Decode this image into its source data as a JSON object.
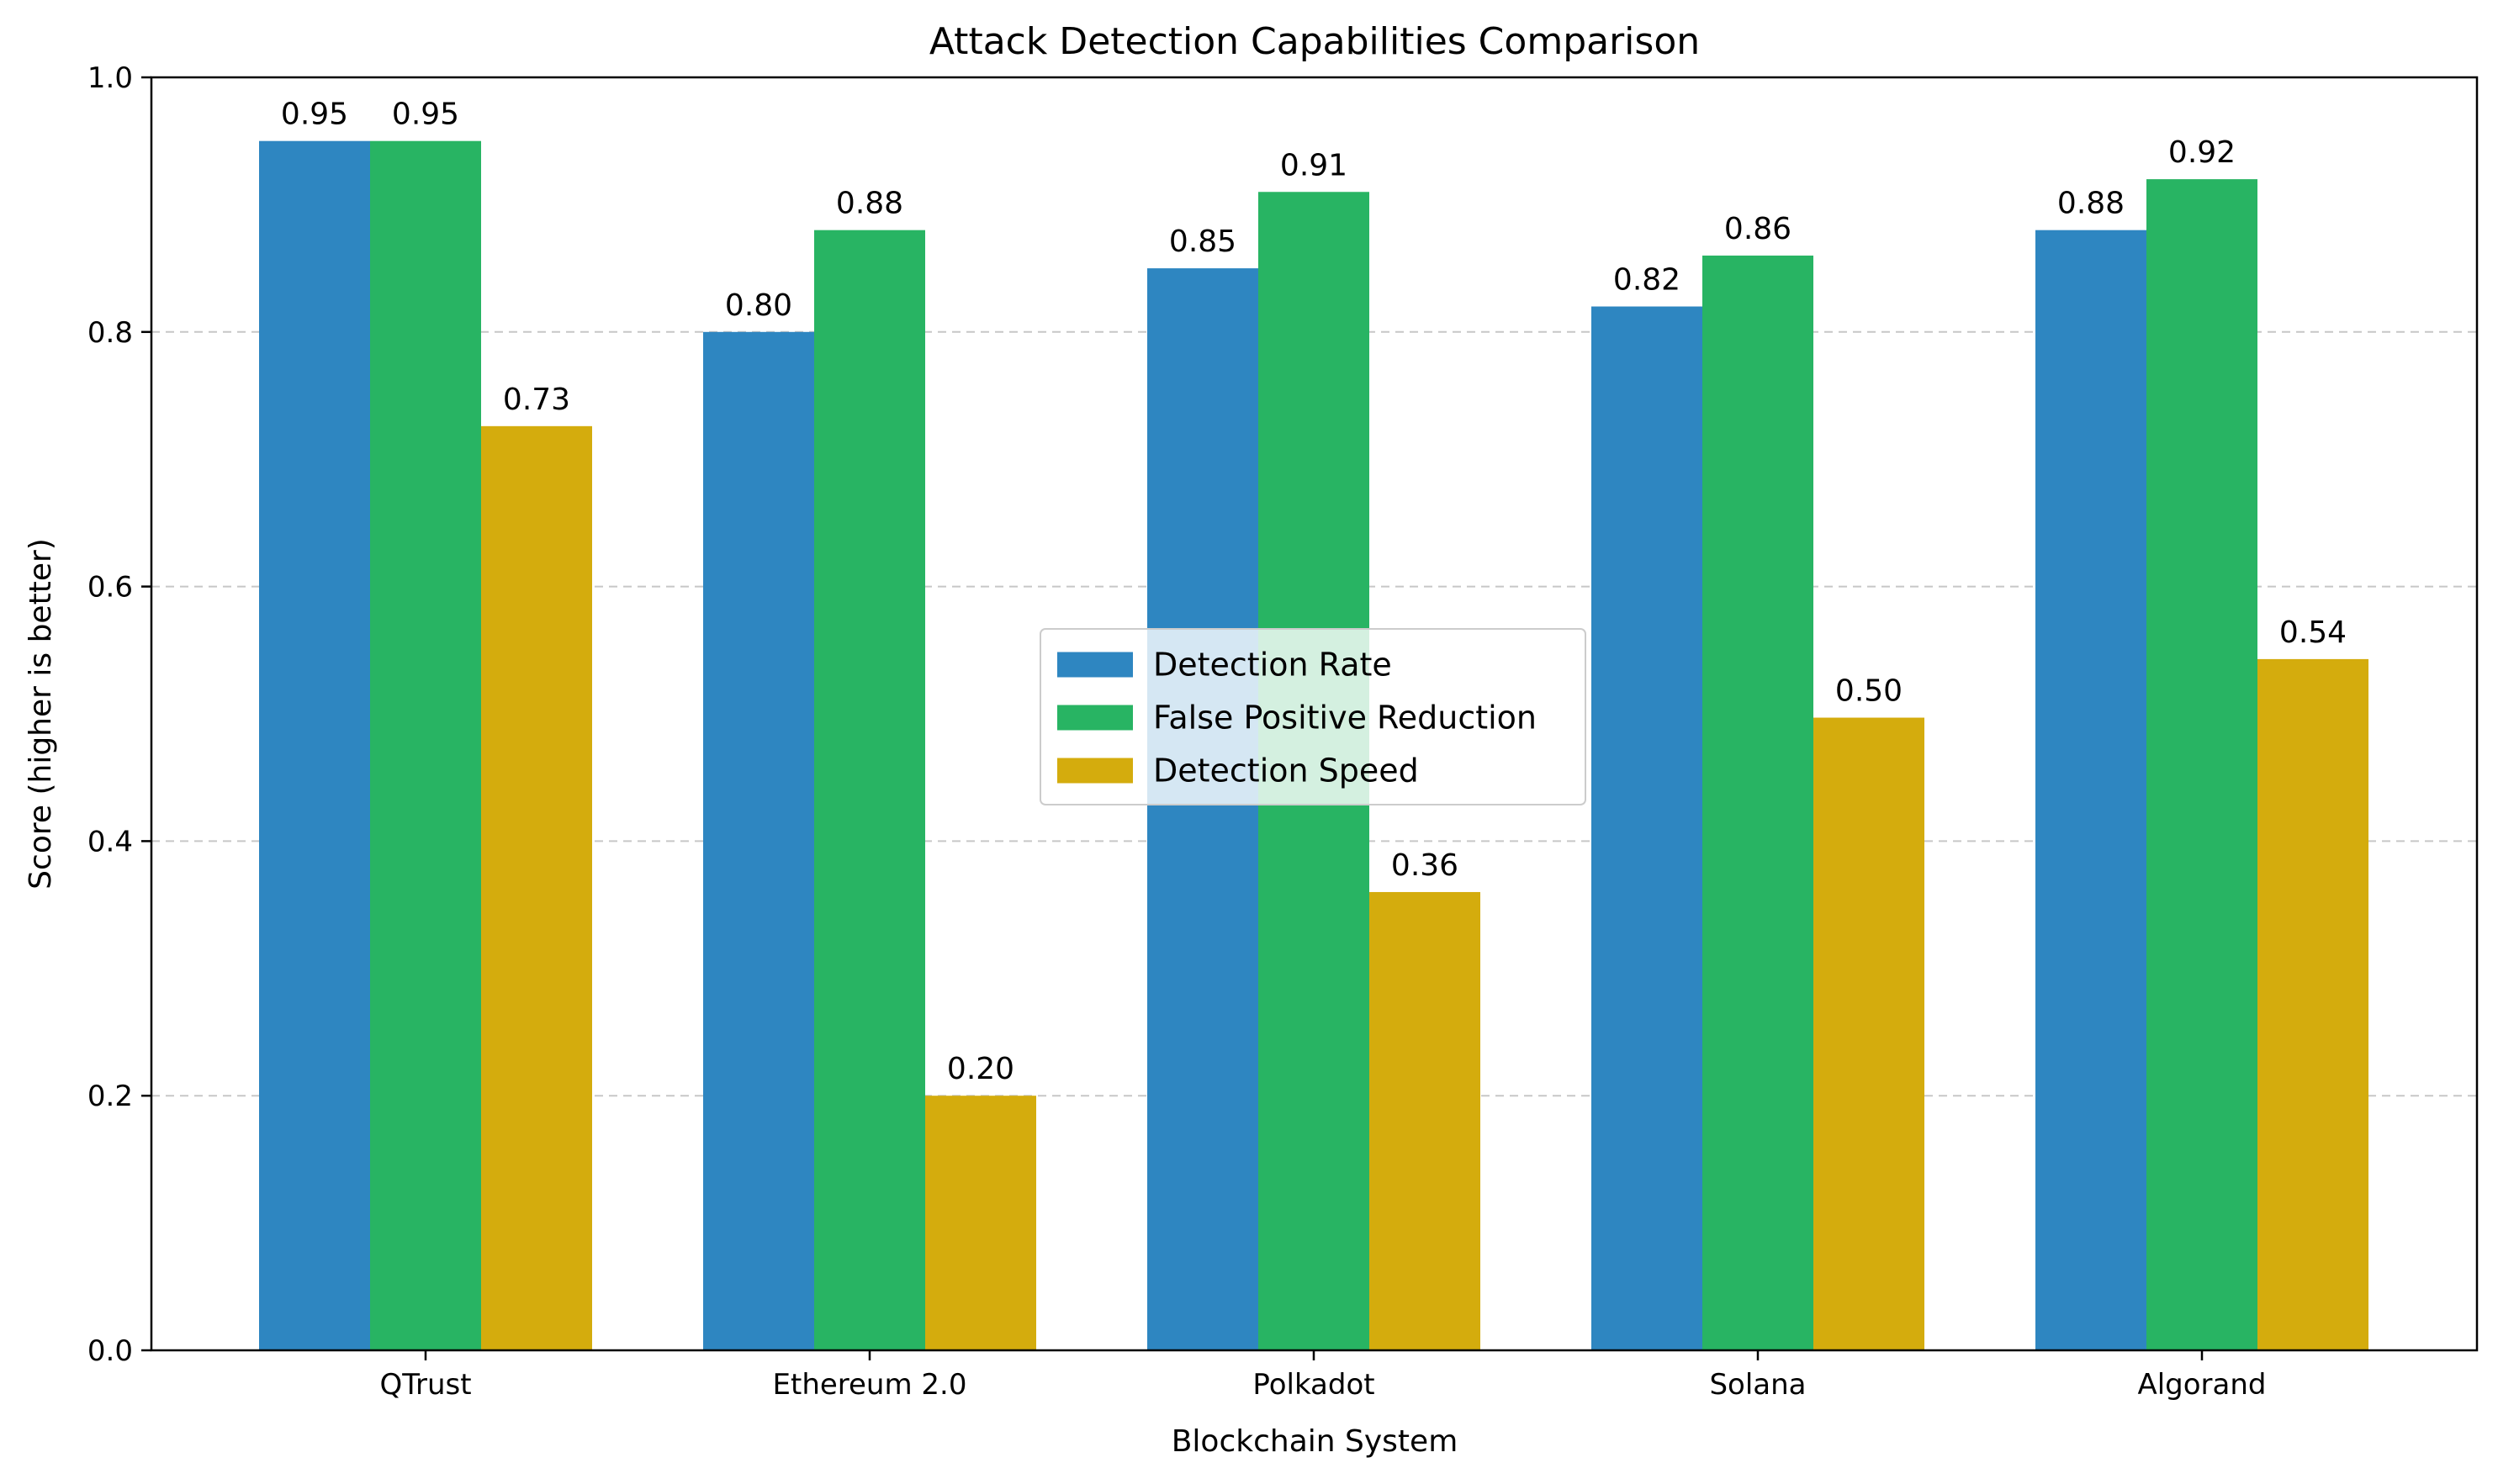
{
  "chart_data": {
    "type": "bar",
    "title": "Attack Detection Capabilities Comparison",
    "xlabel": "Blockchain System",
    "ylabel": "Score (higher is better)",
    "ylim": [
      0,
      1.0
    ],
    "yticks": [
      0.0,
      0.2,
      0.4,
      0.6,
      0.8,
      1.0
    ],
    "ytick_labels": [
      "0.0",
      "0.2",
      "0.4",
      "0.6",
      "0.8",
      "1.0"
    ],
    "grid": "y-dashed",
    "legend_position": "center",
    "categories": [
      "QTrust",
      "Ethereum 2.0",
      "Polkadot",
      "Solana",
      "Algorand"
    ],
    "series": [
      {
        "name": "Detection Rate",
        "color": "#2e86c1",
        "values": [
          0.95,
          0.8,
          0.85,
          0.82,
          0.88
        ],
        "labels": [
          "0.95",
          "0.80",
          "0.85",
          "0.82",
          "0.88"
        ]
      },
      {
        "name": "False Positive Reduction",
        "color": "#28b463",
        "values": [
          0.95,
          0.88,
          0.91,
          0.86,
          0.92
        ],
        "labels": [
          "0.95",
          "0.88",
          "0.91",
          "0.86",
          "0.92"
        ]
      },
      {
        "name": "Detection Speed",
        "color": "#d4ac0d",
        "values": [
          0.726,
          0.2,
          0.36,
          0.497,
          0.543
        ],
        "labels": [
          "0.73",
          "0.20",
          "0.36",
          "0.50",
          "0.54"
        ]
      }
    ]
  }
}
